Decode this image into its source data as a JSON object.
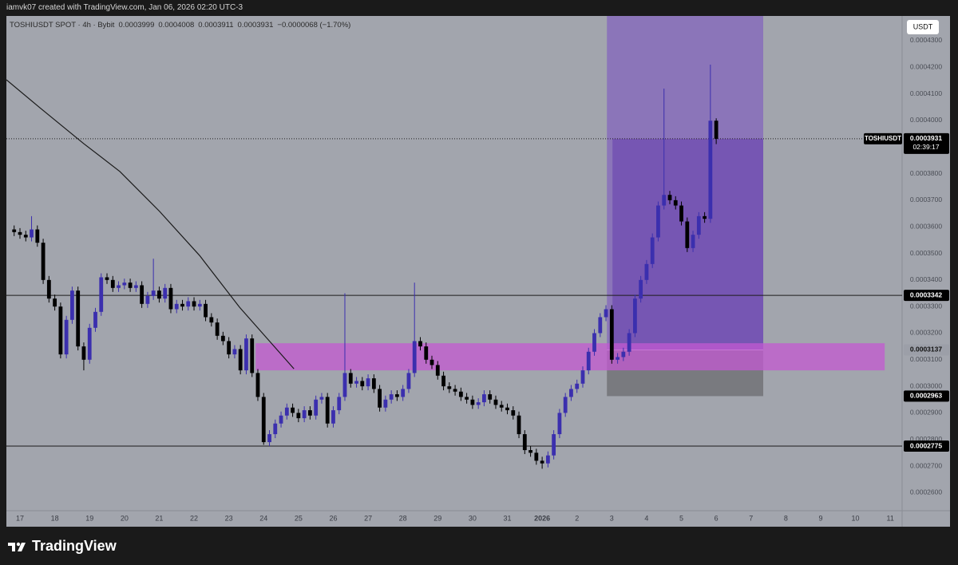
{
  "header": {
    "caption": "iamvk07 created with TradingView.com, Jan 06, 2026 02:20 UTC-3",
    "symbol": "TOSHIUSDT SPOT · 4h · Bybit",
    "change": "−0.0000068 (−1.70%)",
    "currency": "USDT",
    "symbol_label": "TOSHIUSDT",
    "countdown": "02:39:17",
    "brand": "TradingView"
  },
  "chart_data": {
    "type": "candlestick",
    "x": [
      -0.167,
      0,
      0.167,
      0.333,
      0.5,
      0.667,
      0.833,
      1,
      1.167,
      1.333,
      1.5,
      1.667,
      1.833,
      2,
      2.167,
      2.333,
      2.5,
      2.667,
      2.833,
      3,
      3.167,
      3.333,
      3.5,
      3.667,
      3.833,
      4,
      4.167,
      4.333,
      4.5,
      4.667,
      4.833,
      5,
      5.167,
      5.333,
      5.5,
      5.667,
      5.833,
      6,
      6.167,
      6.333,
      6.5,
      6.667,
      6.833,
      7,
      7.167,
      7.333,
      7.5,
      7.667,
      7.833,
      8,
      8.167,
      8.333,
      8.5,
      8.667,
      8.833,
      9,
      9.167,
      9.333,
      9.5,
      9.667,
      9.833,
      10,
      10.167,
      10.333,
      10.5,
      10.667,
      10.833,
      11,
      11.167,
      11.333,
      11.5,
      11.667,
      11.833,
      12,
      12.167,
      12.333,
      12.5,
      12.667,
      12.833,
      13,
      13.167,
      13.333,
      13.5,
      13.667,
      13.833,
      14,
      14.167,
      14.333,
      14.5,
      14.667,
      14.833,
      15,
      15.167,
      15.333,
      15.5,
      15.667,
      15.833,
      16,
      16.167,
      16.333,
      16.5,
      16.667,
      16.833,
      17,
      17.167,
      17.333,
      17.5,
      17.667,
      17.833,
      18,
      18.167,
      18.333,
      18.5,
      18.667,
      18.833,
      19,
      19.167,
      19.333,
      19.5,
      19.667,
      19.833,
      20
    ],
    "candles": [
      [
        0.000359,
        0.0003605,
        0.0003565,
        0.000358
      ],
      [
        0.000358,
        0.0003595,
        0.0003555,
        0.000357
      ],
      [
        0.000357,
        0.0003585,
        0.0003545,
        0.000356
      ],
      [
        0.000356,
        0.000364,
        0.0003545,
        0.000359
      ],
      [
        0.000359,
        0.0003605,
        0.0003525,
        0.000354
      ],
      [
        0.000354,
        0.0003555,
        0.0003385,
        0.00034
      ],
      [
        0.00034,
        0.0003415,
        0.0003315,
        0.000333
      ],
      [
        0.000333,
        0.0003345,
        0.0003285,
        0.00033
      ],
      [
        0.00033,
        0.0003315,
        0.0003105,
        0.000312
      ],
      [
        0.000312,
        0.0003265,
        0.0003105,
        0.000325
      ],
      [
        0.000325,
        0.0003375,
        0.0003235,
        0.000336
      ],
      [
        0.000336,
        0.0003375,
        0.0003135,
        0.000315
      ],
      [
        0.000315,
        0.0003165,
        0.000306,
        0.00031
      ],
      [
        0.00031,
        0.0003235,
        0.0003085,
        0.000322
      ],
      [
        0.000322,
        0.0003295,
        0.0003205,
        0.000328
      ],
      [
        0.000328,
        0.0003425,
        0.0003265,
        0.000341
      ],
      [
        0.000341,
        0.0003425,
        0.0003385,
        0.00034
      ],
      [
        0.00034,
        0.0003415,
        0.0003355,
        0.000337
      ],
      [
        0.000337,
        0.0003395,
        0.0003355,
        0.000338
      ],
      [
        0.000338,
        0.0003405,
        0.0003365,
        0.000339
      ],
      [
        0.000339,
        0.0003405,
        0.0003355,
        0.000337
      ],
      [
        0.000337,
        0.0003395,
        0.0003355,
        0.000338
      ],
      [
        0.000338,
        0.0003395,
        0.0003295,
        0.000331
      ],
      [
        0.000331,
        0.0003355,
        0.0003295,
        0.000334
      ],
      [
        0.000334,
        0.000348,
        0.0003325,
        0.000336
      ],
      [
        0.000336,
        0.0003375,
        0.0003315,
        0.000333
      ],
      [
        0.000333,
        0.0003385,
        0.0003315,
        0.000337
      ],
      [
        0.000337,
        0.0003385,
        0.0003275,
        0.000329
      ],
      [
        0.000329,
        0.0003325,
        0.0003275,
        0.000331
      ],
      [
        0.000331,
        0.0003325,
        0.0003285,
        0.00033
      ],
      [
        0.00033,
        0.0003335,
        0.0003285,
        0.000332
      ],
      [
        0.000332,
        0.0003335,
        0.0003285,
        0.00033
      ],
      [
        0.00033,
        0.0003325,
        0.0003285,
        0.000331
      ],
      [
        0.000331,
        0.0003325,
        0.0003245,
        0.000326
      ],
      [
        0.000326,
        0.0003275,
        0.0003225,
        0.000324
      ],
      [
        0.000324,
        0.0003255,
        0.0003175,
        0.000319
      ],
      [
        0.000319,
        0.0003205,
        0.0003155,
        0.000317
      ],
      [
        0.000317,
        0.0003185,
        0.0003105,
        0.000312
      ],
      [
        0.000312,
        0.0003155,
        0.0003105,
        0.000314
      ],
      [
        0.000314,
        0.0003155,
        0.0003045,
        0.000306
      ],
      [
        0.000306,
        0.0003195,
        0.0003045,
        0.000318
      ],
      [
        0.000318,
        0.0003195,
        0.0003035,
        0.000305
      ],
      [
        0.000305,
        0.0003065,
        0.0002945,
        0.000296
      ],
      [
        0.000296,
        0.0002975,
        0.000278,
        0.000279
      ],
      [
        0.000279,
        0.0002835,
        0.0002775,
        0.000282
      ],
      [
        0.000282,
        0.0002875,
        0.0002805,
        0.000286
      ],
      [
        0.000286,
        0.0002905,
        0.0002845,
        0.000289
      ],
      [
        0.000289,
        0.0002935,
        0.0002875,
        0.000292
      ],
      [
        0.000292,
        0.0002935,
        0.0002885,
        0.00029
      ],
      [
        0.00029,
        0.0002915,
        0.0002865,
        0.000288
      ],
      [
        0.000288,
        0.0002925,
        0.0002865,
        0.000291
      ],
      [
        0.000291,
        0.0002925,
        0.0002875,
        0.000289
      ],
      [
        0.000289,
        0.0002965,
        0.0002875,
        0.000295
      ],
      [
        0.000295,
        0.0002975,
        0.0002935,
        0.000296
      ],
      [
        0.000296,
        0.0002975,
        0.0002845,
        0.000286
      ],
      [
        0.000286,
        0.0002925,
        0.0002845,
        0.000291
      ],
      [
        0.000291,
        0.0002975,
        0.0002895,
        0.000296
      ],
      [
        0.000296,
        0.000335,
        0.0002945,
        0.000305
      ],
      [
        0.000305,
        0.0003065,
        0.0002995,
        0.000301
      ],
      [
        0.000301,
        0.0003035,
        0.0002995,
        0.000302
      ],
      [
        0.000302,
        0.0003035,
        0.0002985,
        0.0003
      ],
      [
        0.0003,
        0.0003045,
        0.0002985,
        0.000303
      ],
      [
        0.000303,
        0.0003045,
        0.0002975,
        0.000299
      ],
      [
        0.000299,
        0.0003005,
        0.0002905,
        0.000292
      ],
      [
        0.000292,
        0.0002965,
        0.0002905,
        0.000295
      ],
      [
        0.000295,
        0.0002985,
        0.0002935,
        0.000297
      ],
      [
        0.000297,
        0.0002985,
        0.0002945,
        0.000296
      ],
      [
        0.000296,
        0.0003005,
        0.0002945,
        0.000299
      ],
      [
        0.000299,
        0.0003065,
        0.0002975,
        0.000305
      ],
      [
        0.000305,
        0.000339,
        0.0003035,
        0.000317
      ],
      [
        0.000317,
        0.0003185,
        0.0003135,
        0.000315
      ],
      [
        0.000315,
        0.0003165,
        0.0003085,
        0.00031
      ],
      [
        0.00031,
        0.0003115,
        0.0003065,
        0.000308
      ],
      [
        0.000308,
        0.0003095,
        0.0003025,
        0.000304
      ],
      [
        0.000304,
        0.0003055,
        0.0002985,
        0.0003
      ],
      [
        0.0003,
        0.0003015,
        0.0002975,
        0.000299
      ],
      [
        0.000299,
        0.0003005,
        0.0002965,
        0.000298
      ],
      [
        0.000298,
        0.0002995,
        0.0002945,
        0.000296
      ],
      [
        0.000296,
        0.0002975,
        0.0002935,
        0.000295
      ],
      [
        0.000295,
        0.0002965,
        0.0002915,
        0.000293
      ],
      [
        0.000293,
        0.0002955,
        0.0002915,
        0.000294
      ],
      [
        0.000294,
        0.0002985,
        0.0002925,
        0.000297
      ],
      [
        0.000297,
        0.0002985,
        0.0002935,
        0.000295
      ],
      [
        0.000295,
        0.0002965,
        0.0002915,
        0.000293
      ],
      [
        0.000293,
        0.0002945,
        0.0002905,
        0.000292
      ],
      [
        0.000292,
        0.0002935,
        0.0002895,
        0.000291
      ],
      [
        0.000291,
        0.0002925,
        0.0002875,
        0.000289
      ],
      [
        0.000289,
        0.0002905,
        0.0002805,
        0.000282
      ],
      [
        0.000282,
        0.0002835,
        0.0002745,
        0.000276
      ],
      [
        0.000276,
        0.0002775,
        0.0002735,
        0.000275
      ],
      [
        0.000275,
        0.0002765,
        0.0002705,
        0.000272
      ],
      [
        0.000272,
        0.0002735,
        0.000269,
        0.000271
      ],
      [
        0.000271,
        0.0002755,
        0.0002695,
        0.000274
      ],
      [
        0.000274,
        0.0002835,
        0.0002725,
        0.000282
      ],
      [
        0.000282,
        0.0002915,
        0.0002805,
        0.00029
      ],
      [
        0.00029,
        0.0002975,
        0.0002885,
        0.000296
      ],
      [
        0.000296,
        0.0003005,
        0.0002945,
        0.000299
      ],
      [
        0.000299,
        0.0003025,
        0.0002975,
        0.000301
      ],
      [
        0.000301,
        0.0003075,
        0.0002995,
        0.000306
      ],
      [
        0.000306,
        0.0003145,
        0.0003045,
        0.000313
      ],
      [
        0.000313,
        0.0003215,
        0.0003115,
        0.00032
      ],
      [
        0.00032,
        0.0003275,
        0.0003185,
        0.000326
      ],
      [
        0.000326,
        0.0003305,
        0.0003245,
        0.000329
      ],
      [
        0.000329,
        0.0003305,
        0.0003085,
        0.00031
      ],
      [
        0.00031,
        0.0003125,
        0.0003085,
        0.000311
      ],
      [
        0.000311,
        0.0003145,
        0.0003095,
        0.000313
      ],
      [
        0.000313,
        0.0003215,
        0.0003115,
        0.00032
      ],
      [
        0.00032,
        0.0003345,
        0.0003185,
        0.000333
      ],
      [
        0.000333,
        0.0003415,
        0.0003315,
        0.00034
      ],
      [
        0.00034,
        0.0003475,
        0.0003385,
        0.000346
      ],
      [
        0.000346,
        0.0003575,
        0.0003445,
        0.000356
      ],
      [
        0.000356,
        0.0003695,
        0.0003545,
        0.000368
      ],
      [
        0.000368,
        0.000412,
        0.0003665,
        0.000372
      ],
      [
        0.000372,
        0.0003735,
        0.0003685,
        0.00037
      ],
      [
        0.00037,
        0.0003715,
        0.0003665,
        0.000368
      ],
      [
        0.000368,
        0.0003695,
        0.0003605,
        0.000362
      ],
      [
        0.000362,
        0.0003635,
        0.0003505,
        0.000352
      ],
      [
        0.000352,
        0.0003585,
        0.0003505,
        0.000357
      ],
      [
        0.000357,
        0.0003655,
        0.0003555,
        0.000364
      ],
      [
        0.000364,
        0.0003655,
        0.0003615,
        0.000363
      ],
      [
        0.000363,
        0.000421,
        0.0003615,
        0.0003999
      ],
      [
        0.0003999,
        0.0004008,
        0.0003911,
        0.0003931
      ]
    ],
    "up_color": "#3b2fae",
    "down_color": "#000000",
    "xlim": [
      -0.39,
      25.34
    ],
    "ylim": [
      0.0002532,
      0.0004393
    ],
    "xticks": [
      {
        "value": 0,
        "label": "17"
      },
      {
        "value": 1,
        "label": "18"
      },
      {
        "value": 2,
        "label": "19"
      },
      {
        "value": 3,
        "label": "20"
      },
      {
        "value": 4,
        "label": "21"
      },
      {
        "value": 5,
        "label": "22"
      },
      {
        "value": 6,
        "label": "23"
      },
      {
        "value": 7,
        "label": "24"
      },
      {
        "value": 8,
        "label": "25"
      },
      {
        "value": 9,
        "label": "26"
      },
      {
        "value": 10,
        "label": "27"
      },
      {
        "value": 11,
        "label": "28"
      },
      {
        "value": 12,
        "label": "29"
      },
      {
        "value": 13,
        "label": "30"
      },
      {
        "value": 14,
        "label": "31"
      },
      {
        "value": 15,
        "label": "2026"
      },
      {
        "value": 16,
        "label": "2"
      },
      {
        "value": 17,
        "label": "3"
      },
      {
        "value": 18,
        "label": "4"
      },
      {
        "value": 19,
        "label": "5"
      },
      {
        "value": 20,
        "label": "6"
      },
      {
        "value": 21,
        "label": "7"
      },
      {
        "value": 22,
        "label": "8"
      },
      {
        "value": 23,
        "label": "9"
      },
      {
        "value": 24,
        "label": "10"
      },
      {
        "value": 25,
        "label": "11"
      }
    ],
    "yticks": [
      {
        "value": 0.00043,
        "label": "0.0004300"
      },
      {
        "value": 0.00042,
        "label": "0.0004200"
      },
      {
        "value": 0.00041,
        "label": "0.0004100"
      },
      {
        "value": 0.0004,
        "label": "0.0004000"
      },
      {
        "value": 0.00039,
        "label": "0.0003900"
      },
      {
        "value": 0.00038,
        "label": "0.0003800"
      },
      {
        "value": 0.00037,
        "label": "0.0003700"
      },
      {
        "value": 0.00036,
        "label": "0.0003600"
      },
      {
        "value": 0.00035,
        "label": "0.0003500"
      },
      {
        "value": 0.00034,
        "label": "0.0003400"
      },
      {
        "value": 0.00033,
        "label": "0.0003300"
      },
      {
        "value": 0.00032,
        "label": "0.0003200"
      },
      {
        "value": 0.00031,
        "label": "0.0003100"
      },
      {
        "value": 0.0003,
        "label": "0.0003000"
      },
      {
        "value": 0.00029,
        "label": "0.0002900"
      },
      {
        "value": 0.00028,
        "label": "0.0002800"
      },
      {
        "value": 0.00027,
        "label": "0.0002700"
      },
      {
        "value": 0.00026,
        "label": "0.0002600"
      }
    ],
    "grid": false,
    "moving_average": {
      "color": "#1a1a1a",
      "x": [
        -0.39,
        0.57,
        1.83,
        2.87,
        4.01,
        5.16,
        6.31,
        7.87
      ],
      "values": [
        0.0004153,
        0.0004048,
        0.0003913,
        0.0003808,
        0.0003658,
        0.0003492,
        0.0003297,
        0.0003066
      ]
    },
    "hlines": [
      0.0003342,
      0.0002775
    ],
    "zone": {
      "x": [
        6.77,
        24.84
      ],
      "y": [
        0.000306,
        0.0003162
      ],
      "color": "#c35ad2"
    },
    "position": {
      "x": [
        16.86,
        21.35
      ],
      "entry": 0.0003137,
      "stop": 0.0002963,
      "target": 0.00044
    }
  }
}
